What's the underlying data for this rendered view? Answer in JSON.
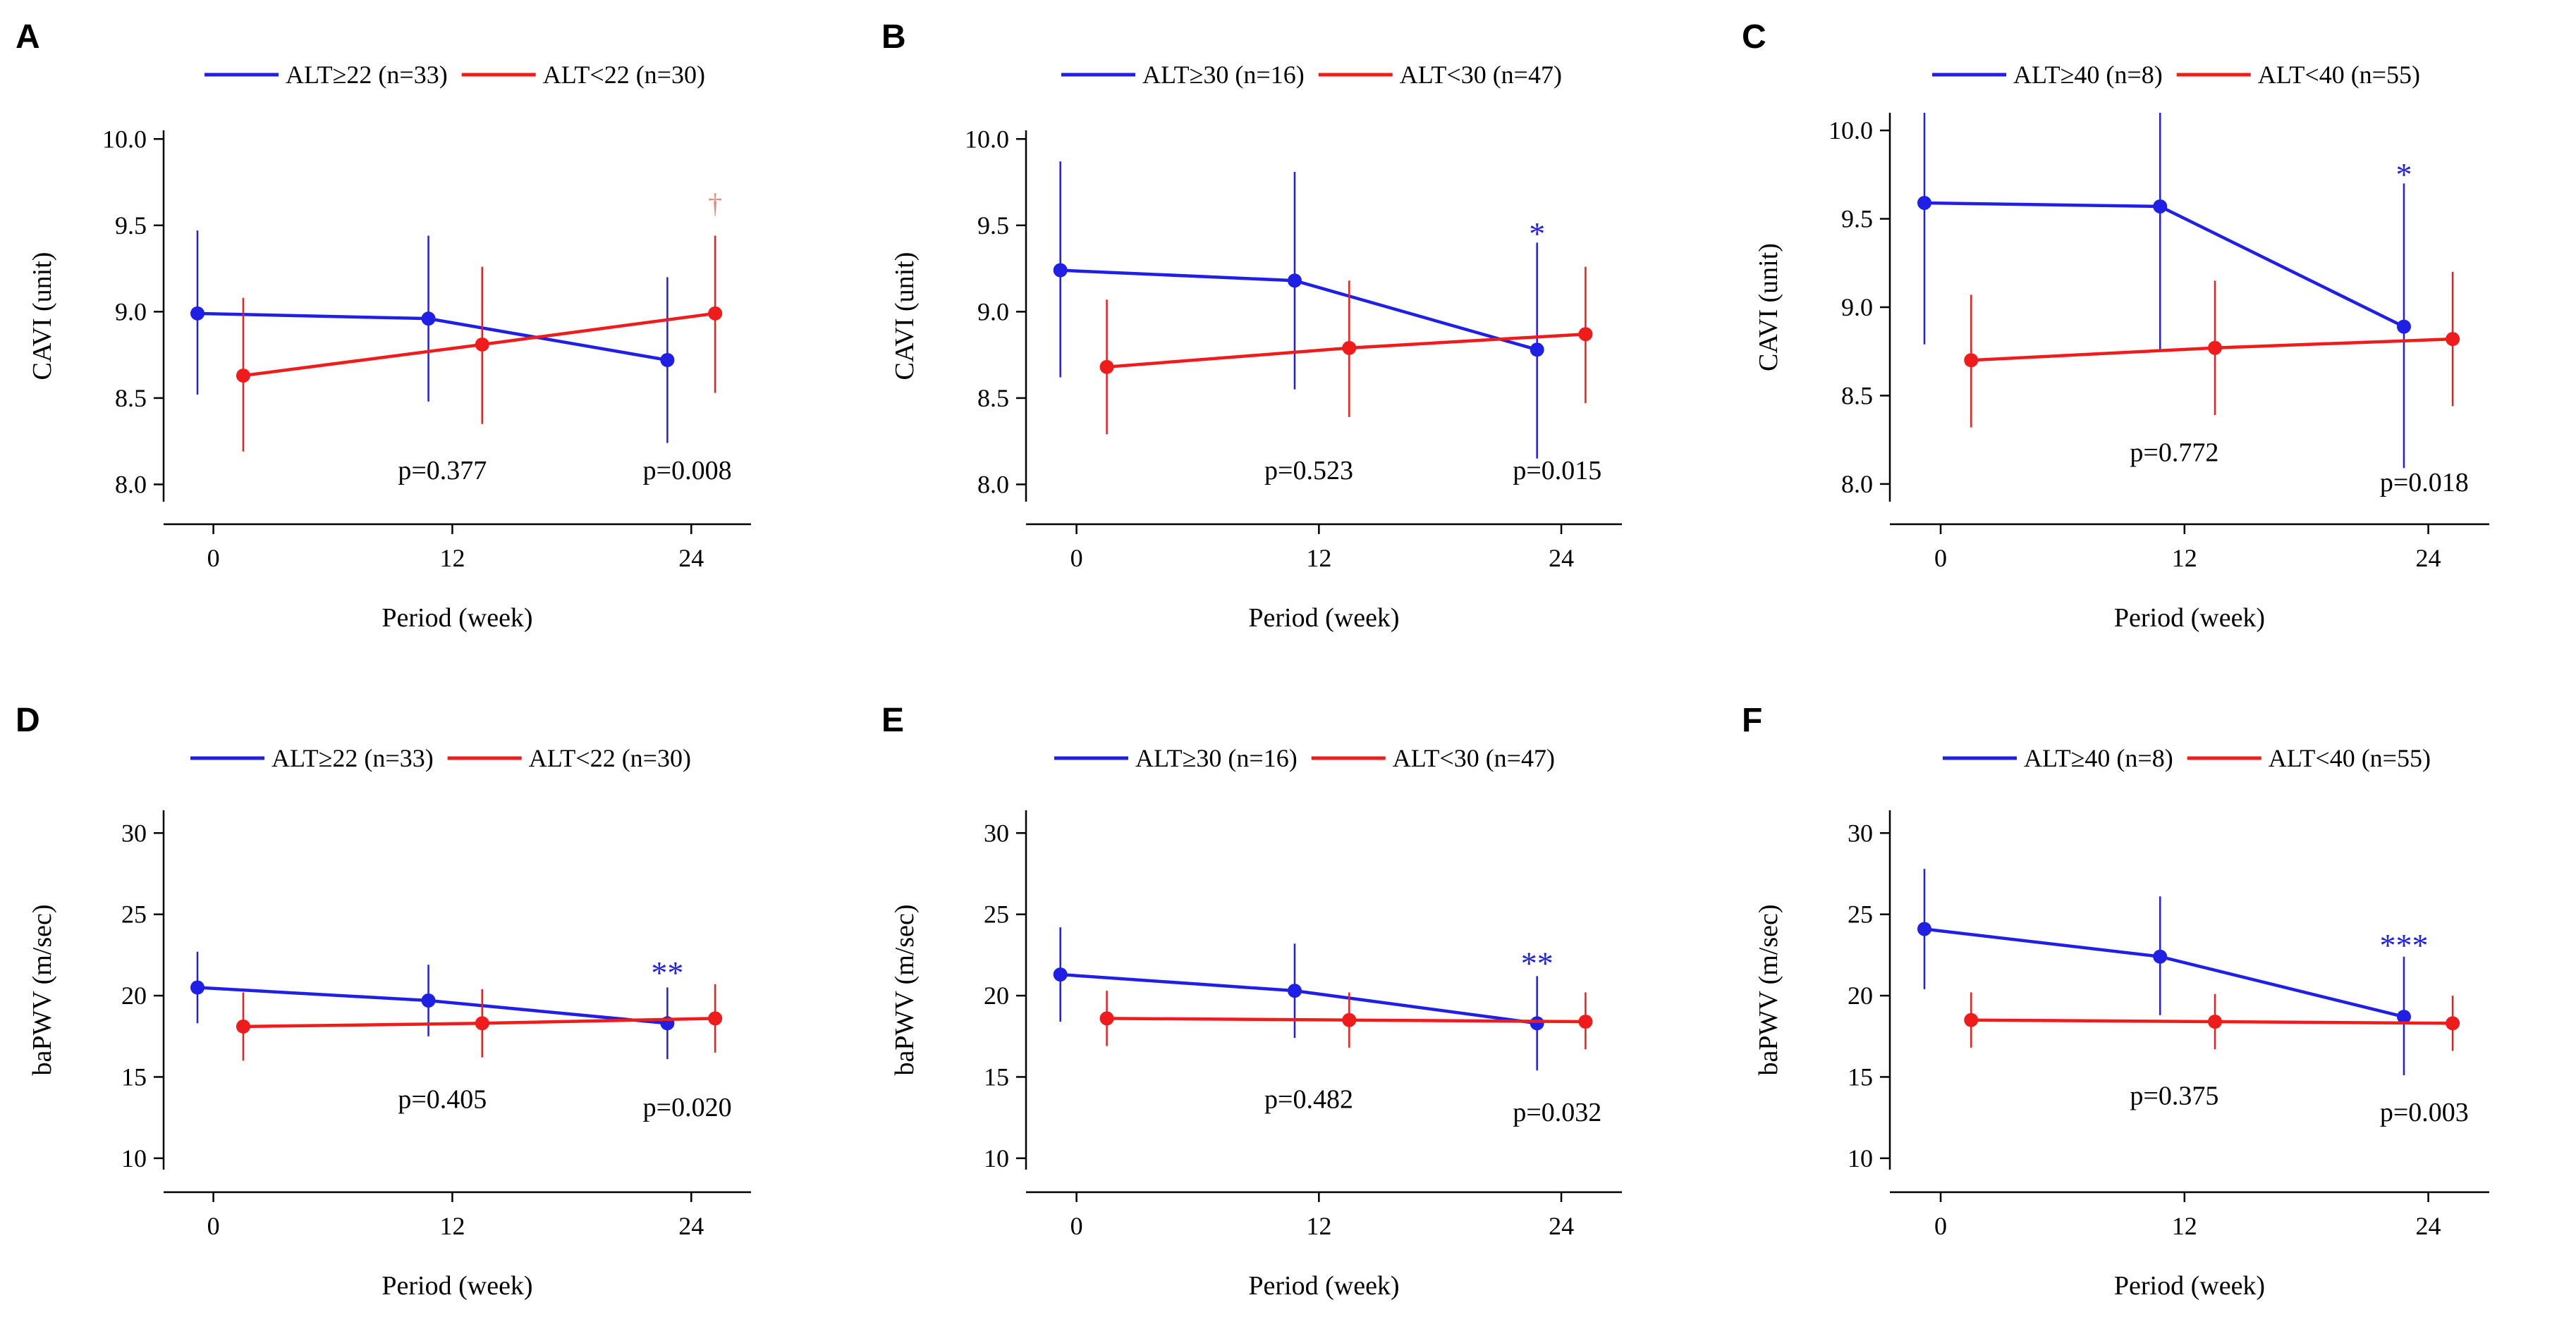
{
  "colors": {
    "blue": "#1f1fe6",
    "red": "#f01c1c",
    "dagger_red": "#e88a80",
    "axis": "#000000",
    "background": "#ffffff"
  },
  "chart_data": [
    {
      "type": "line",
      "panel": "A",
      "ylabel": "CAVI (unit)",
      "xlabel": "Period (week)",
      "x_ticks": [
        "0",
        "12",
        "24"
      ],
      "y_ticks": [
        "8.0",
        "8.5",
        "9.0",
        "9.5",
        "10.0"
      ],
      "ylim": [
        7.9,
        10.05
      ],
      "xlim": [
        -2.5,
        27
      ],
      "legend_position": "top",
      "series": [
        {
          "name": "ALT≥22 (n=33)",
          "color": "blue",
          "x": [
            -0.8,
            10.8,
            22.8
          ],
          "y": [
            8.99,
            8.96,
            8.72
          ],
          "err_low": [
            8.52,
            8.48,
            8.24
          ],
          "err_high": [
            9.47,
            9.44,
            9.2
          ]
        },
        {
          "name": "ALT<22 (n=30)",
          "color": "red",
          "x": [
            1.5,
            13.5,
            25.2
          ],
          "y": [
            8.63,
            8.81,
            8.99
          ],
          "err_low": [
            8.19,
            8.35,
            8.53
          ],
          "err_high": [
            9.08,
            9.26,
            9.44
          ]
        }
      ],
      "annotations": [
        {
          "text": "p=0.377",
          "x": 11.5,
          "y": 8.03
        },
        {
          "text": "p=0.008",
          "x": 23.8,
          "y": 8.03
        },
        {
          "text": "†",
          "x": 25.2,
          "y": 9.57,
          "color": "dagger_red"
        }
      ]
    },
    {
      "type": "line",
      "panel": "B",
      "ylabel": "CAVI (unit)",
      "xlabel": "Period (week)",
      "x_ticks": [
        "0",
        "12",
        "24"
      ],
      "y_ticks": [
        "8.0",
        "8.5",
        "9.0",
        "9.5",
        "10.0"
      ],
      "ylim": [
        7.9,
        10.05
      ],
      "xlim": [
        -2.5,
        27
      ],
      "legend_position": "top",
      "series": [
        {
          "name": "ALT≥30 (n=16)",
          "color": "blue",
          "x": [
            -0.8,
            10.8,
            22.8
          ],
          "y": [
            9.24,
            9.18,
            8.78
          ],
          "err_low": [
            8.62,
            8.55,
            8.15
          ],
          "err_high": [
            9.87,
            9.81,
            9.4
          ]
        },
        {
          "name": "ALT<30 (n=47)",
          "color": "red",
          "x": [
            1.5,
            13.5,
            25.2
          ],
          "y": [
            8.68,
            8.79,
            8.87
          ],
          "err_low": [
            8.29,
            8.39,
            8.47
          ],
          "err_high": [
            9.07,
            9.18,
            9.26
          ]
        }
      ],
      "annotations": [
        {
          "text": "p=0.523",
          "x": 11.5,
          "y": 8.03
        },
        {
          "text": "p=0.015",
          "x": 23.8,
          "y": 8.03
        },
        {
          "text": "*",
          "x": 22.8,
          "y": 9.47,
          "color": "blue"
        }
      ]
    },
    {
      "type": "line",
      "panel": "C",
      "ylabel": "CAVI (unit)",
      "xlabel": "Period (week)",
      "x_ticks": [
        "0",
        "12",
        "24"
      ],
      "y_ticks": [
        "8.0",
        "8.5",
        "9.0",
        "9.5",
        "10.0"
      ],
      "ylim": [
        7.9,
        10.1
      ],
      "xlim": [
        -2.5,
        27
      ],
      "legend_position": "top",
      "series": [
        {
          "name": "ALT≥40 (n=8)",
          "color": "blue",
          "x": [
            -0.8,
            10.8,
            22.8
          ],
          "y": [
            9.59,
            9.57,
            8.89
          ],
          "err_low": [
            8.79,
            8.76,
            8.09
          ],
          "err_high": [
            10.1,
            10.1,
            9.7
          ]
        },
        {
          "name": "ALT<40 (n=55)",
          "color": "red",
          "x": [
            1.5,
            13.5,
            25.2
          ],
          "y": [
            8.7,
            8.77,
            8.82
          ],
          "err_low": [
            8.32,
            8.39,
            8.44
          ],
          "err_high": [
            9.07,
            9.15,
            9.2
          ]
        }
      ],
      "annotations": [
        {
          "text": "p=0.772",
          "x": 11.5,
          "y": 8.13
        },
        {
          "text": "p=0.018",
          "x": 23.8,
          "y": 7.96
        },
        {
          "text": "*",
          "x": 22.8,
          "y": 9.77,
          "color": "blue"
        }
      ]
    },
    {
      "type": "line",
      "panel": "D",
      "ylabel": "baPWV (m/sec)",
      "xlabel": "Period (week)",
      "x_ticks": [
        "0",
        "12",
        "24"
      ],
      "y_ticks": [
        "10",
        "15",
        "20",
        "25",
        "30"
      ],
      "ylim": [
        9.3,
        31.4
      ],
      "xlim": [
        -2.5,
        27
      ],
      "legend_position": "top",
      "series": [
        {
          "name": "ALT≥22 (n=33)",
          "color": "blue",
          "x": [
            -0.8,
            10.8,
            22.8
          ],
          "y": [
            20.5,
            19.7,
            18.3
          ],
          "err_low": [
            18.3,
            17.5,
            16.1
          ],
          "err_high": [
            22.7,
            21.9,
            20.5
          ]
        },
        {
          "name": "ALT<22 (n=30)",
          "color": "red",
          "x": [
            1.5,
            13.5,
            25.2
          ],
          "y": [
            18.1,
            18.3,
            18.6
          ],
          "err_low": [
            16.0,
            16.2,
            16.5
          ],
          "err_high": [
            20.2,
            20.4,
            20.7
          ]
        }
      ],
      "annotations": [
        {
          "text": "p=0.405",
          "x": 11.5,
          "y": 13.1
        },
        {
          "text": "p=0.020",
          "x": 23.8,
          "y": 12.6
        },
        {
          "text": "**",
          "x": 22.8,
          "y": 21.6,
          "color": "blue"
        }
      ]
    },
    {
      "type": "line",
      "panel": "E",
      "ylabel": "baPWV (m/sec)",
      "xlabel": "Period (week)",
      "x_ticks": [
        "0",
        "12",
        "24"
      ],
      "y_ticks": [
        "10",
        "15",
        "20",
        "25",
        "30"
      ],
      "ylim": [
        9.3,
        31.4
      ],
      "xlim": [
        -2.5,
        27
      ],
      "legend_position": "top",
      "series": [
        {
          "name": "ALT≥30 (n=16)",
          "color": "blue",
          "x": [
            -0.8,
            10.8,
            22.8
          ],
          "y": [
            21.3,
            20.3,
            18.3
          ],
          "err_low": [
            18.4,
            17.4,
            15.4
          ],
          "err_high": [
            24.2,
            23.2,
            21.2
          ]
        },
        {
          "name": "ALT<30 (n=47)",
          "color": "red",
          "x": [
            1.5,
            13.5,
            25.2
          ],
          "y": [
            18.6,
            18.5,
            18.4
          ],
          "err_low": [
            16.9,
            16.8,
            16.7
          ],
          "err_high": [
            20.3,
            20.2,
            20.2
          ]
        }
      ],
      "annotations": [
        {
          "text": "p=0.482",
          "x": 11.5,
          "y": 13.1
        },
        {
          "text": "p=0.032",
          "x": 23.8,
          "y": 12.3
        },
        {
          "text": "**",
          "x": 22.8,
          "y": 22.2,
          "color": "blue"
        }
      ]
    },
    {
      "type": "line",
      "panel": "F",
      "ylabel": "baPWV (m/sec)",
      "xlabel": "Period (week)",
      "x_ticks": [
        "0",
        "12",
        "24"
      ],
      "y_ticks": [
        "10",
        "15",
        "20",
        "25",
        "30"
      ],
      "ylim": [
        9.3,
        31.4
      ],
      "xlim": [
        -2.5,
        27
      ],
      "legend_position": "top",
      "series": [
        {
          "name": "ALT≥40 (n=8)",
          "color": "blue",
          "x": [
            -0.8,
            10.8,
            22.8
          ],
          "y": [
            24.1,
            22.4,
            18.7
          ],
          "err_low": [
            20.4,
            18.8,
            15.1
          ],
          "err_high": [
            27.8,
            26.1,
            22.4
          ]
        },
        {
          "name": "ALT<40 (n=55)",
          "color": "red",
          "x": [
            1.5,
            13.5,
            25.2
          ],
          "y": [
            18.5,
            18.4,
            18.3
          ],
          "err_low": [
            16.8,
            16.7,
            16.6
          ],
          "err_high": [
            20.2,
            20.1,
            20.0
          ]
        }
      ],
      "annotations": [
        {
          "text": "p=0.375",
          "x": 11.5,
          "y": 13.3
        },
        {
          "text": "p=0.003",
          "x": 23.8,
          "y": 12.3
        },
        {
          "text": "***",
          "x": 22.8,
          "y": 23.3,
          "color": "blue"
        }
      ]
    }
  ]
}
